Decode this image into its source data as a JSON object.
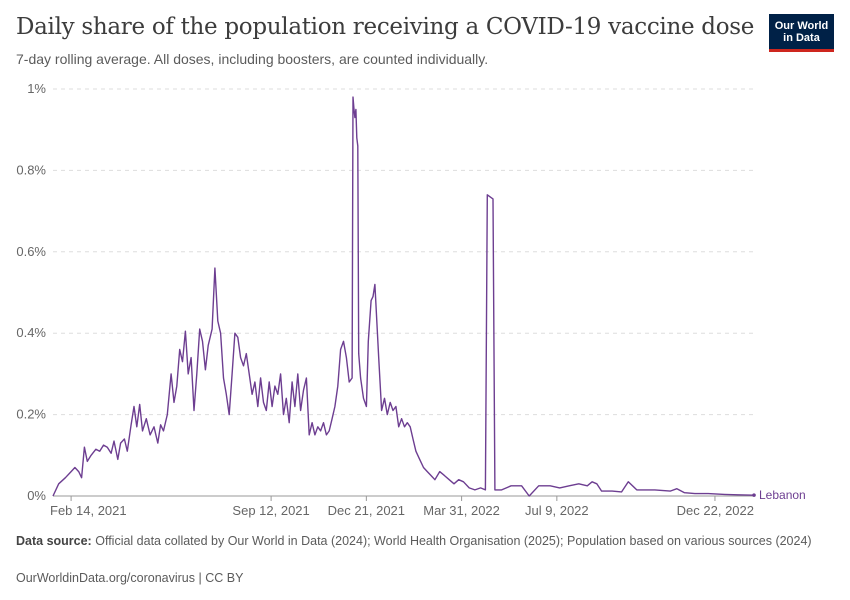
{
  "header": {
    "title": "Daily share of the population receiving a COVID-19 vaccine dose",
    "subtitle": "7-day rolling average. All doses, including boosters, are counted individually.",
    "logo_line1": "Our World",
    "logo_line2": "in Data"
  },
  "footer": {
    "source_label": "Data source:",
    "source_text": "Official data collated by Our World in Data (2024); World Health Organisation (2025); Population based on various sources (2024)",
    "url": "OurWorldinData.org/coronavirus | CC BY"
  },
  "colors": {
    "series": "#6d3e91",
    "grid": "#dddddd",
    "axis": "#999999"
  },
  "chart_data": {
    "type": "line",
    "title": "Daily share of the population receiving a COVID-19 vaccine dose",
    "subtitle": "7-day rolling average. All doses, including boosters, are counted individually.",
    "xlabel": "",
    "ylabel": "",
    "x_range": [
      "2021-01-26",
      "2023-02-01"
    ],
    "ylim": [
      0,
      1
    ],
    "y_unit": "%",
    "y_ticks": [
      "0%",
      "0.2%",
      "0.4%",
      "0.6%",
      "0.8%",
      "1%"
    ],
    "y_tick_values": [
      0,
      0.2,
      0.4,
      0.6,
      0.8,
      1
    ],
    "x_ticks": [
      "Feb 14, 2021",
      "Sep 12, 2021",
      "Dec 21, 2021",
      "Mar 31, 2022",
      "Jul 9, 2022",
      "Dec 22, 2022"
    ],
    "x_tick_dates": [
      "2021-02-14",
      "2021-09-12",
      "2021-12-21",
      "2022-03-31",
      "2022-07-09",
      "2022-12-22"
    ],
    "grid": "horizontal dashed",
    "legend": "inline-right",
    "series": [
      {
        "name": "Lebanon",
        "points": [
          [
            "2021-01-26",
            0.0
          ],
          [
            "2021-02-01",
            0.03
          ],
          [
            "2021-02-08",
            0.045
          ],
          [
            "2021-02-14",
            0.06
          ],
          [
            "2021-02-18",
            0.07
          ],
          [
            "2021-02-22",
            0.06
          ],
          [
            "2021-02-25",
            0.045
          ],
          [
            "2021-02-28",
            0.12
          ],
          [
            "2021-03-03",
            0.085
          ],
          [
            "2021-03-07",
            0.1
          ],
          [
            "2021-03-12",
            0.115
          ],
          [
            "2021-03-16",
            0.11
          ],
          [
            "2021-03-20",
            0.125
          ],
          [
            "2021-03-24",
            0.12
          ],
          [
            "2021-03-28",
            0.105
          ],
          [
            "2021-03-31",
            0.135
          ],
          [
            "2021-04-04",
            0.09
          ],
          [
            "2021-04-07",
            0.13
          ],
          [
            "2021-04-11",
            0.14
          ],
          [
            "2021-04-14",
            0.11
          ],
          [
            "2021-04-18",
            0.175
          ],
          [
            "2021-04-21",
            0.22
          ],
          [
            "2021-04-24",
            0.17
          ],
          [
            "2021-04-27",
            0.225
          ],
          [
            "2021-04-30",
            0.16
          ],
          [
            "2021-05-04",
            0.19
          ],
          [
            "2021-05-08",
            0.15
          ],
          [
            "2021-05-12",
            0.17
          ],
          [
            "2021-05-16",
            0.13
          ],
          [
            "2021-05-19",
            0.175
          ],
          [
            "2021-05-22",
            0.16
          ],
          [
            "2021-05-26",
            0.2
          ],
          [
            "2021-05-30",
            0.3
          ],
          [
            "2021-06-02",
            0.23
          ],
          [
            "2021-06-05",
            0.27
          ],
          [
            "2021-06-08",
            0.36
          ],
          [
            "2021-06-11",
            0.33
          ],
          [
            "2021-06-14",
            0.405
          ],
          [
            "2021-06-17",
            0.3
          ],
          [
            "2021-06-20",
            0.34
          ],
          [
            "2021-06-23",
            0.21
          ],
          [
            "2021-06-26",
            0.3
          ],
          [
            "2021-06-29",
            0.41
          ],
          [
            "2021-07-02",
            0.38
          ],
          [
            "2021-07-05",
            0.31
          ],
          [
            "2021-07-08",
            0.37
          ],
          [
            "2021-07-12",
            0.41
          ],
          [
            "2021-07-15",
            0.56
          ],
          [
            "2021-07-18",
            0.43
          ],
          [
            "2021-07-21",
            0.4
          ],
          [
            "2021-07-24",
            0.29
          ],
          [
            "2021-07-27",
            0.25
          ],
          [
            "2021-07-30",
            0.2
          ],
          [
            "2021-08-02",
            0.3
          ],
          [
            "2021-08-05",
            0.4
          ],
          [
            "2021-08-08",
            0.39
          ],
          [
            "2021-08-11",
            0.34
          ],
          [
            "2021-08-14",
            0.32
          ],
          [
            "2021-08-17",
            0.35
          ],
          [
            "2021-08-20",
            0.3
          ],
          [
            "2021-08-23",
            0.25
          ],
          [
            "2021-08-26",
            0.28
          ],
          [
            "2021-08-29",
            0.22
          ],
          [
            "2021-09-01",
            0.29
          ],
          [
            "2021-09-04",
            0.23
          ],
          [
            "2021-09-07",
            0.21
          ],
          [
            "2021-09-10",
            0.28
          ],
          [
            "2021-09-13",
            0.22
          ],
          [
            "2021-09-16",
            0.27
          ],
          [
            "2021-09-19",
            0.25
          ],
          [
            "2021-09-22",
            0.3
          ],
          [
            "2021-09-25",
            0.2
          ],
          [
            "2021-09-28",
            0.24
          ],
          [
            "2021-10-01",
            0.18
          ],
          [
            "2021-10-04",
            0.28
          ],
          [
            "2021-10-07",
            0.22
          ],
          [
            "2021-10-10",
            0.3
          ],
          [
            "2021-10-13",
            0.21
          ],
          [
            "2021-10-16",
            0.26
          ],
          [
            "2021-10-19",
            0.29
          ],
          [
            "2021-10-22",
            0.15
          ],
          [
            "2021-10-25",
            0.18
          ],
          [
            "2021-10-28",
            0.15
          ],
          [
            "2021-10-31",
            0.17
          ],
          [
            "2021-11-03",
            0.16
          ],
          [
            "2021-11-06",
            0.18
          ],
          [
            "2021-11-09",
            0.15
          ],
          [
            "2021-11-12",
            0.16
          ],
          [
            "2021-11-15",
            0.19
          ],
          [
            "2021-11-18",
            0.22
          ],
          [
            "2021-11-21",
            0.27
          ],
          [
            "2021-11-24",
            0.36
          ],
          [
            "2021-11-27",
            0.38
          ],
          [
            "2021-11-30",
            0.34
          ],
          [
            "2021-12-03",
            0.28
          ],
          [
            "2021-12-06",
            0.29
          ],
          [
            "2021-12-07",
            0.98
          ],
          [
            "2021-12-08",
            0.95
          ],
          [
            "2021-12-09",
            0.93
          ],
          [
            "2021-12-10",
            0.95
          ],
          [
            "2021-12-11",
            0.88
          ],
          [
            "2021-12-12",
            0.86
          ],
          [
            "2021-12-13",
            0.35
          ],
          [
            "2021-12-15",
            0.29
          ],
          [
            "2021-12-18",
            0.24
          ],
          [
            "2021-12-21",
            0.22
          ],
          [
            "2021-12-23",
            0.38
          ],
          [
            "2021-12-26",
            0.48
          ],
          [
            "2021-12-28",
            0.49
          ],
          [
            "2021-12-30",
            0.52
          ],
          [
            "2022-01-01",
            0.43
          ],
          [
            "2022-01-03",
            0.34
          ],
          [
            "2022-01-06",
            0.21
          ],
          [
            "2022-01-09",
            0.24
          ],
          [
            "2022-01-12",
            0.2
          ],
          [
            "2022-01-15",
            0.23
          ],
          [
            "2022-01-18",
            0.21
          ],
          [
            "2022-01-21",
            0.22
          ],
          [
            "2022-01-24",
            0.17
          ],
          [
            "2022-01-27",
            0.19
          ],
          [
            "2022-01-30",
            0.17
          ],
          [
            "2022-02-02",
            0.18
          ],
          [
            "2022-02-05",
            0.17
          ],
          [
            "2022-02-08",
            0.14
          ],
          [
            "2022-02-11",
            0.11
          ],
          [
            "2022-02-15",
            0.09
          ],
          [
            "2022-02-19",
            0.07
          ],
          [
            "2022-02-23",
            0.06
          ],
          [
            "2022-02-27",
            0.05
          ],
          [
            "2022-03-03",
            0.04
          ],
          [
            "2022-03-08",
            0.06
          ],
          [
            "2022-03-13",
            0.05
          ],
          [
            "2022-03-18",
            0.04
          ],
          [
            "2022-03-23",
            0.03
          ],
          [
            "2022-03-28",
            0.04
          ],
          [
            "2022-04-02",
            0.035
          ],
          [
            "2022-04-08",
            0.02
          ],
          [
            "2022-04-14",
            0.015
          ],
          [
            "2022-04-20",
            0.02
          ],
          [
            "2022-04-25",
            0.015
          ],
          [
            "2022-04-27",
            0.74
          ],
          [
            "2022-04-30",
            0.735
          ],
          [
            "2022-05-03",
            0.73
          ],
          [
            "2022-05-05",
            0.015
          ],
          [
            "2022-05-12",
            0.015
          ],
          [
            "2022-05-22",
            0.025
          ],
          [
            "2022-06-02",
            0.025
          ],
          [
            "2022-06-10",
            0.0
          ],
          [
            "2022-06-20",
            0.025
          ],
          [
            "2022-07-02",
            0.025
          ],
          [
            "2022-07-12",
            0.02
          ],
          [
            "2022-07-22",
            0.025
          ],
          [
            "2022-08-01",
            0.03
          ],
          [
            "2022-08-10",
            0.025
          ],
          [
            "2022-08-15",
            0.035
          ],
          [
            "2022-08-20",
            0.03
          ],
          [
            "2022-08-25",
            0.012
          ],
          [
            "2022-09-05",
            0.012
          ],
          [
            "2022-09-15",
            0.01
          ],
          [
            "2022-09-22",
            0.035
          ],
          [
            "2022-10-01",
            0.015
          ],
          [
            "2022-10-20",
            0.015
          ],
          [
            "2022-11-05",
            0.012
          ],
          [
            "2022-11-12",
            0.018
          ],
          [
            "2022-11-20",
            0.008
          ],
          [
            "2022-12-01",
            0.006
          ],
          [
            "2022-12-15",
            0.006
          ],
          [
            "2023-01-01",
            0.004
          ],
          [
            "2023-01-15",
            0.003
          ],
          [
            "2023-02-01",
            0.002
          ]
        ]
      }
    ]
  }
}
